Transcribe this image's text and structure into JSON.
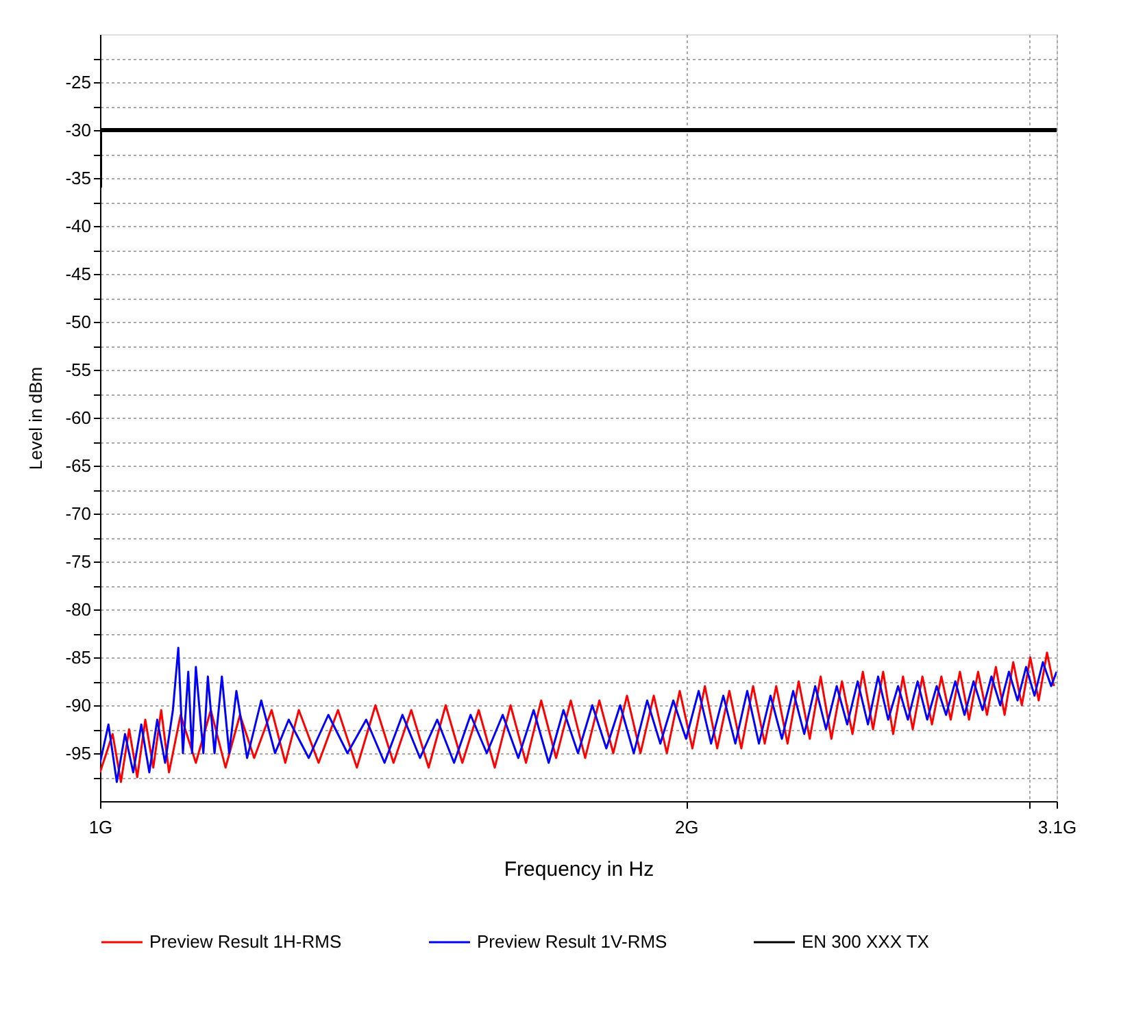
{
  "chart_data": {
    "type": "line",
    "xlabel": "Frequency in Hz",
    "ylabel": "Level in dBm",
    "log": "x",
    "xlim": [
      1,
      3.1
    ],
    "ylim": [
      -100,
      -20
    ],
    "xticks": [
      {
        "value": 1,
        "label": "1G"
      },
      {
        "value": 2,
        "label": "2G"
      },
      {
        "value": 3,
        "label": null
      },
      {
        "value": 3.1,
        "label": "3.1G"
      }
    ],
    "yticks": [
      {
        "value": -22.5,
        "label": null
      },
      -25,
      {
        "value": -27.5,
        "label": null
      },
      -30,
      {
        "value": -32.5,
        "label": null
      },
      -35,
      {
        "value": -37.5,
        "label": null
      },
      -40,
      {
        "value": -42.5,
        "label": null
      },
      -45,
      {
        "value": -47.5,
        "label": null
      },
      -50,
      {
        "value": -52.5,
        "label": null
      },
      -55,
      {
        "value": -57.5,
        "label": null
      },
      -60,
      {
        "value": -62.5,
        "label": null
      },
      -65,
      {
        "value": -67.5,
        "label": null
      },
      -70,
      {
        "value": -72.5,
        "label": null
      },
      -75,
      {
        "value": -77.5,
        "label": null
      },
      -80,
      {
        "value": -82.5,
        "label": null
      },
      -85,
      {
        "value": -87.5,
        "label": null
      },
      -90,
      {
        "value": -92.5,
        "label": null
      },
      -95,
      {
        "value": -97.5,
        "label": null
      }
    ],
    "grid": true,
    "legend": "bottom",
    "marker": "none",
    "line_style": "solid",
    "series": [
      {
        "name": "Preview Result 1H-RMS",
        "color": "#ff0000",
        "x": [
          1.0,
          1.015,
          1.025,
          1.035,
          1.045,
          1.055,
          1.065,
          1.075,
          1.085,
          1.1,
          1.12,
          1.14,
          1.16,
          1.18,
          1.2,
          1.225,
          1.245,
          1.265,
          1.295,
          1.325,
          1.355,
          1.385,
          1.415,
          1.445,
          1.475,
          1.505,
          1.535,
          1.565,
          1.595,
          1.625,
          1.655,
          1.685,
          1.715,
          1.745,
          1.775,
          1.805,
          1.835,
          1.865,
          1.895,
          1.925,
          1.955,
          1.985,
          2.015,
          2.045,
          2.075,
          2.105,
          2.135,
          2.165,
          2.195,
          2.225,
          2.255,
          2.285,
          2.315,
          2.345,
          2.375,
          2.405,
          2.435,
          2.465,
          2.495,
          2.525,
          2.555,
          2.585,
          2.615,
          2.645,
          2.675,
          2.705,
          2.735,
          2.765,
          2.795,
          2.825,
          2.855,
          2.885,
          2.915,
          2.945,
          2.975,
          3.005,
          3.035,
          3.065,
          3.09
        ],
        "values": [
          -97,
          -93,
          -98,
          -92.5,
          -97.5,
          -91.5,
          -96.5,
          -90.5,
          -97,
          -91,
          -96,
          -90.5,
          -96.5,
          -91,
          -95.5,
          -90.5,
          -96,
          -90.5,
          -96,
          -90.5,
          -96.5,
          -90,
          -96,
          -90.5,
          -96.5,
          -90,
          -96,
          -90.5,
          -96.5,
          -90,
          -96,
          -89.5,
          -95.5,
          -89.5,
          -95.5,
          -89.5,
          -95,
          -89,
          -95,
          -89,
          -95,
          -88.5,
          -94.5,
          -88,
          -94.5,
          -88.5,
          -94.5,
          -88,
          -94,
          -88,
          -94,
          -87.5,
          -93.5,
          -87,
          -93.5,
          -87.5,
          -93,
          -86.5,
          -92.5,
          -86.5,
          -93,
          -87,
          -92.5,
          -87,
          -92,
          -87,
          -91.5,
          -86.5,
          -91.5,
          -86.5,
          -91,
          -86,
          -91,
          -85.5,
          -90,
          -85,
          -89.5,
          -84.5,
          -88
        ]
      },
      {
        "name": "Preview Result 1V-RMS",
        "color": "#0000ff",
        "x": [
          1.0,
          1.01,
          1.02,
          1.03,
          1.04,
          1.05,
          1.06,
          1.07,
          1.08,
          1.09,
          1.097,
          1.103,
          1.11,
          1.115,
          1.12,
          1.13,
          1.136,
          1.145,
          1.155,
          1.165,
          1.175,
          1.19,
          1.21,
          1.23,
          1.25,
          1.28,
          1.31,
          1.34,
          1.37,
          1.4,
          1.43,
          1.46,
          1.49,
          1.52,
          1.55,
          1.58,
          1.61,
          1.64,
          1.67,
          1.7,
          1.73,
          1.76,
          1.79,
          1.82,
          1.85,
          1.88,
          1.91,
          1.94,
          1.97,
          2.0,
          2.03,
          2.06,
          2.09,
          2.12,
          2.15,
          2.18,
          2.21,
          2.24,
          2.27,
          2.3,
          2.33,
          2.36,
          2.39,
          2.42,
          2.45,
          2.48,
          2.51,
          2.54,
          2.57,
          2.6,
          2.63,
          2.66,
          2.69,
          2.72,
          2.75,
          2.78,
          2.81,
          2.84,
          2.87,
          2.9,
          2.93,
          2.96,
          2.99,
          3.02,
          3.05,
          3.08,
          3.1
        ],
        "values": [
          -96,
          -92,
          -98,
          -93,
          -97,
          -92,
          -97,
          -91.5,
          -96,
          -90.5,
          -84,
          -95,
          -86.5,
          -95,
          -86,
          -95,
          -87,
          -95,
          -87,
          -95,
          -88.5,
          -95.5,
          -89.5,
          -95,
          -91.5,
          -95.5,
          -91,
          -95,
          -91.5,
          -96,
          -91,
          -95.5,
          -91.5,
          -96,
          -91,
          -95,
          -91,
          -95.5,
          -90.5,
          -96,
          -90.5,
          -95,
          -90,
          -94.5,
          -90,
          -95,
          -89.5,
          -94,
          -89.5,
          -93.5,
          -88.5,
          -94,
          -89,
          -94,
          -88.5,
          -94,
          -89,
          -93.5,
          -88.5,
          -93,
          -88,
          -92.5,
          -88,
          -92,
          -87.5,
          -92,
          -87,
          -91.5,
          -88,
          -91.5,
          -87.5,
          -91.5,
          -88,
          -91,
          -87.5,
          -91,
          -87.5,
          -90.5,
          -87,
          -90,
          -86.5,
          -89.5,
          -86,
          -89,
          -85.5,
          -88,
          -86.5
        ]
      },
      {
        "name": "EN 300 XXX TX",
        "color": "#000000",
        "x": [
          1.0,
          1.0,
          3.1
        ],
        "values": [
          -36,
          -30,
          -30
        ]
      }
    ]
  }
}
